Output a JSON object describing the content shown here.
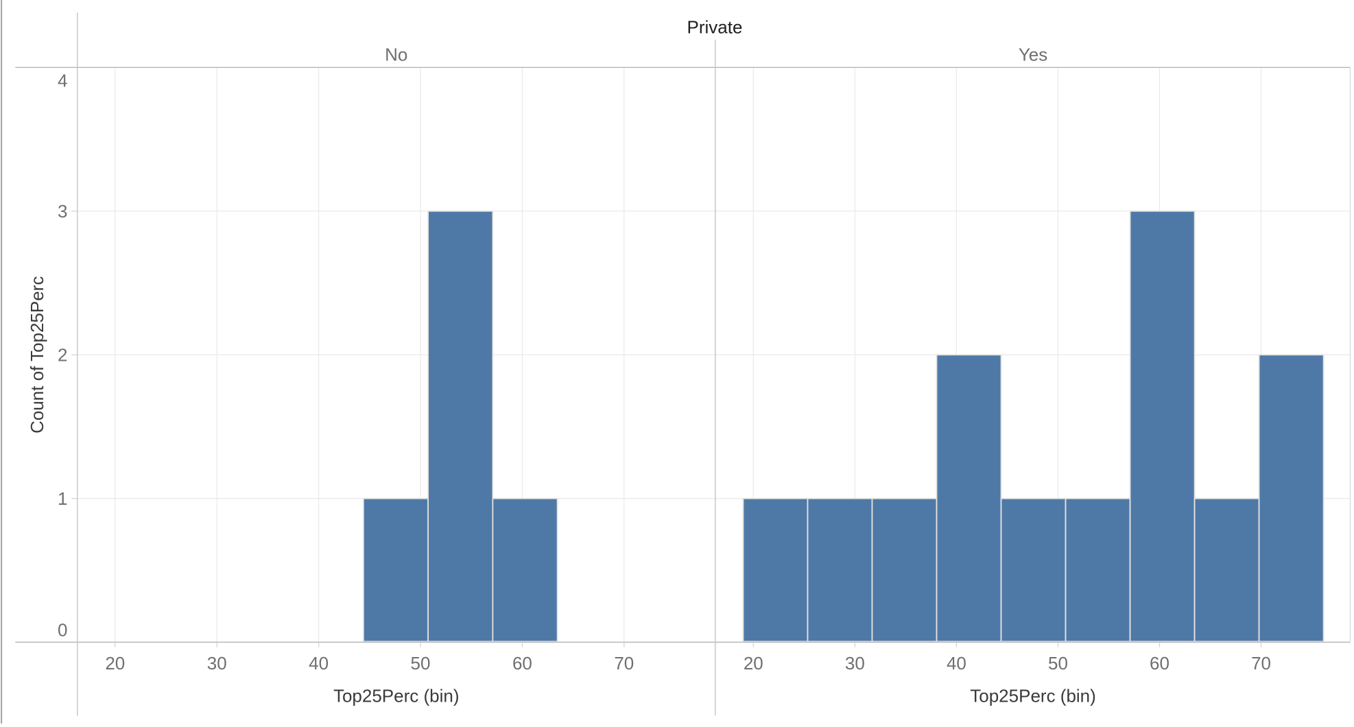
{
  "chart_data": {
    "type": "bar",
    "subtype": "faceted-histogram",
    "title": "Private",
    "xlabel": "Top25Perc (bin)",
    "ylabel": "Count of Top25Perc",
    "x_ticks": [
      20,
      30,
      40,
      50,
      60,
      70
    ],
    "y_ticks": [
      0,
      1,
      2,
      3,
      4
    ],
    "ylim": [
      0,
      4
    ],
    "bin_size": 6.35,
    "grid": "on",
    "legend_position": "none",
    "bar_color": "#4e79a7",
    "panels": [
      {
        "label": "No",
        "bins": [
          {
            "start": 44.4,
            "count": 1
          },
          {
            "start": 50.75,
            "count": 3
          },
          {
            "start": 57.1,
            "count": 1
          }
        ]
      },
      {
        "label": "Yes",
        "bins": [
          {
            "start": 19.0,
            "count": 1
          },
          {
            "start": 25.35,
            "count": 1
          },
          {
            "start": 31.7,
            "count": 1
          },
          {
            "start": 38.05,
            "count": 2
          },
          {
            "start": 44.4,
            "count": 1
          },
          {
            "start": 50.75,
            "count": 1
          },
          {
            "start": 57.1,
            "count": 3
          },
          {
            "start": 63.45,
            "count": 1
          },
          {
            "start": 69.8,
            "count": 2
          }
        ]
      }
    ]
  }
}
